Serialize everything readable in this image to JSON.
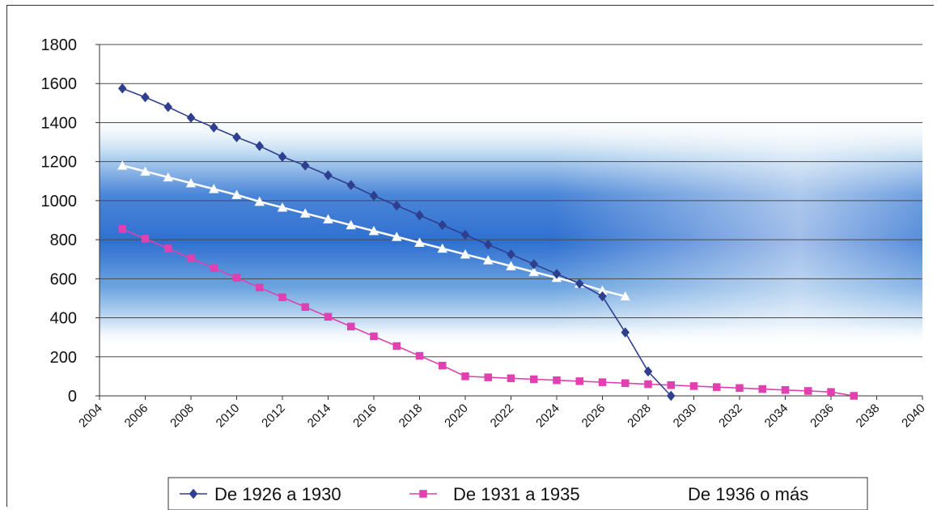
{
  "chart_data": {
    "type": "line",
    "title": "",
    "xlabel": "",
    "ylabel": "",
    "ylim": [
      0,
      1800
    ],
    "xlim": [
      2004,
      2040
    ],
    "y_ticks": [
      0,
      200,
      400,
      600,
      800,
      1000,
      1200,
      1400,
      1600,
      1800
    ],
    "x_ticks": [
      2004,
      2006,
      2008,
      2010,
      2012,
      2014,
      2016,
      2018,
      2020,
      2022,
      2024,
      2026,
      2028,
      2030,
      2032,
      2034,
      2036,
      2038,
      2040
    ],
    "grid": true,
    "legend_position": "bottom",
    "series": [
      {
        "name": "De 1926 a 1930",
        "color": "#2e3f8f",
        "marker": "diamond",
        "x": [
          2005,
          2006,
          2007,
          2008,
          2009,
          2010,
          2011,
          2012,
          2013,
          2014,
          2015,
          2016,
          2017,
          2018,
          2019,
          2020,
          2021,
          2022,
          2023,
          2024,
          2025,
          2026,
          2027,
          2028,
          2029
        ],
        "y": [
          1575,
          1530,
          1480,
          1425,
          1375,
          1325,
          1280,
          1225,
          1180,
          1130,
          1080,
          1025,
          975,
          925,
          875,
          825,
          775,
          725,
          675,
          625,
          575,
          510,
          325,
          125,
          0
        ]
      },
      {
        "name": "De 1931 a 1935",
        "color": "#e040b0",
        "marker": "square",
        "x": [
          2005,
          2006,
          2007,
          2008,
          2009,
          2010,
          2011,
          2012,
          2013,
          2014,
          2015,
          2016,
          2017,
          2018,
          2019,
          2020,
          2021,
          2022,
          2023,
          2024,
          2025,
          2026,
          2027,
          2028,
          2029,
          2030,
          2031,
          2032,
          2033,
          2034,
          2035,
          2036,
          2037
        ],
        "y": [
          855,
          805,
          755,
          705,
          655,
          605,
          555,
          505,
          455,
          405,
          355,
          305,
          255,
          205,
          155,
          100,
          95,
          90,
          85,
          80,
          75,
          70,
          65,
          60,
          55,
          50,
          45,
          40,
          35,
          30,
          25,
          20,
          0
        ]
      },
      {
        "name": "De 1936 o más",
        "color": "#ffffff",
        "marker": "triangle",
        "x": [
          2005,
          2006,
          2007,
          2008,
          2009,
          2010,
          2011,
          2012,
          2013,
          2014,
          2015,
          2016,
          2017,
          2018,
          2019,
          2020,
          2021,
          2022,
          2023,
          2024,
          2025,
          2026,
          2027
        ],
        "y": [
          1180,
          1150,
          1120,
          1090,
          1060,
          1030,
          995,
          965,
          935,
          905,
          875,
          845,
          815,
          785,
          755,
          725,
          695,
          665,
          635,
          605,
          575,
          540,
          510
        ]
      }
    ]
  }
}
